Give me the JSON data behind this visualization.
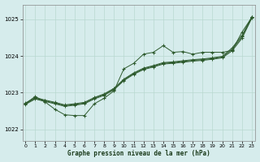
{
  "title": "Graphe pression niveau de la mer (hPa)",
  "background_color": "#d6ecec",
  "grid_color": "#b8d8d0",
  "line_color": "#2d5a2d",
  "ylim": [
    1021.7,
    1025.4
  ],
  "xlim": [
    -0.3,
    23.3
  ],
  "yticks": [
    1022,
    1023,
    1024,
    1025
  ],
  "xticks": [
    0,
    1,
    2,
    3,
    4,
    5,
    6,
    7,
    8,
    9,
    10,
    11,
    12,
    13,
    14,
    15,
    16,
    17,
    18,
    19,
    20,
    21,
    22,
    23
  ],
  "line_jagged": [
    1022.7,
    1022.9,
    1022.75,
    1022.55,
    1022.4,
    1022.38,
    1022.38,
    1022.7,
    1022.85,
    1023.05,
    1023.65,
    1023.8,
    1024.05,
    1024.1,
    1024.28,
    1024.1,
    1024.12,
    1024.05,
    1024.1,
    1024.1,
    1024.1,
    1024.15,
    1024.65,
    1025.05
  ],
  "line_trend1": [
    1022.7,
    1022.85,
    1022.78,
    1022.72,
    1022.65,
    1022.68,
    1022.72,
    1022.85,
    1022.95,
    1023.1,
    1023.35,
    1023.52,
    1023.65,
    1023.72,
    1023.8,
    1023.82,
    1023.85,
    1023.88,
    1023.9,
    1023.93,
    1023.97,
    1024.18,
    1024.52,
    1025.05
  ],
  "line_trend2": [
    1022.72,
    1022.87,
    1022.8,
    1022.74,
    1022.67,
    1022.7,
    1022.74,
    1022.87,
    1022.97,
    1023.12,
    1023.37,
    1023.54,
    1023.67,
    1023.74,
    1023.82,
    1023.84,
    1023.87,
    1023.9,
    1023.92,
    1023.95,
    1023.99,
    1024.22,
    1024.56,
    1025.07
  ],
  "line_trend3": [
    1022.68,
    1022.83,
    1022.76,
    1022.7,
    1022.63,
    1022.66,
    1022.7,
    1022.83,
    1022.93,
    1023.08,
    1023.33,
    1023.5,
    1023.63,
    1023.7,
    1023.78,
    1023.8,
    1023.83,
    1023.86,
    1023.88,
    1023.91,
    1023.95,
    1024.14,
    1024.48,
    1025.03
  ]
}
